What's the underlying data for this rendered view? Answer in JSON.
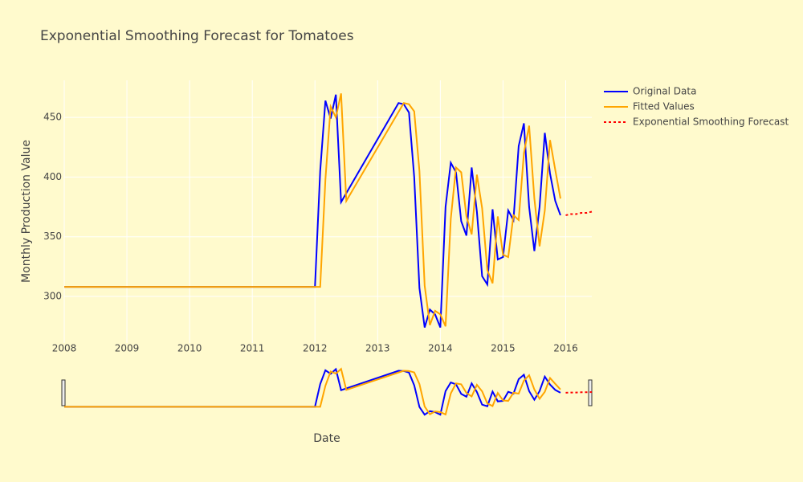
{
  "chart_data": {
    "type": "line",
    "title": "Exponential Smoothing Forecast for Tomatoes",
    "x_label": "Date",
    "y_label": "Monthly Production Value",
    "xlim": [
      "2008-01",
      "2016-06"
    ],
    "xticks": [
      2008,
      2009,
      2010,
      2011,
      2012,
      2013,
      2014,
      2015,
      2016
    ],
    "ylim": [
      261,
      481
    ],
    "yticks": [
      300,
      350,
      400,
      450
    ],
    "grid": true,
    "range_slider": true,
    "legend": "right",
    "series": [
      {
        "name": "Original Data",
        "color": "#0000ff",
        "dash": "solid",
        "x": [
          "2008-01",
          "2012-01",
          "2012-02",
          "2012-03",
          "2012-04",
          "2012-05",
          "2012-06",
          "2013-05",
          "2013-06",
          "2013-07",
          "2013-08",
          "2013-09",
          "2013-10",
          "2013-11",
          "2013-12",
          "2014-01",
          "2014-02",
          "2014-03",
          "2014-04",
          "2014-05",
          "2014-06",
          "2014-07",
          "2014-08",
          "2014-09",
          "2014-10",
          "2014-11",
          "2014-12",
          "2015-01",
          "2015-02",
          "2015-03",
          "2015-04",
          "2015-05",
          "2015-06",
          "2015-07",
          "2015-08",
          "2015-09",
          "2015-10",
          "2015-11",
          "2015-12"
        ],
        "values": [
          308,
          308,
          405,
          464,
          449,
          469,
          379,
          462,
          461,
          454,
          400,
          307,
          274,
          289,
          285,
          274,
          375,
          412,
          404,
          363,
          351,
          408,
          371,
          317,
          310,
          373,
          331,
          333,
          372,
          364,
          426,
          445,
          375,
          338,
          375,
          437,
          403,
          380,
          368
        ]
      },
      {
        "name": "Fitted Values",
        "color": "#ffa500",
        "dash": "solid",
        "x": [
          "2008-01",
          "2012-01",
          "2012-02",
          "2012-03",
          "2012-04",
          "2012-05",
          "2012-06",
          "2012-07",
          "2013-06",
          "2013-07",
          "2013-08",
          "2013-09",
          "2013-10",
          "2013-11",
          "2013-12",
          "2014-01",
          "2014-02",
          "2014-03",
          "2014-04",
          "2014-05",
          "2014-06",
          "2014-07",
          "2014-08",
          "2014-09",
          "2014-10",
          "2014-11",
          "2014-12",
          "2015-01",
          "2015-02",
          "2015-03",
          "2015-04",
          "2015-05",
          "2015-06",
          "2015-07",
          "2015-08",
          "2015-09",
          "2015-10",
          "2015-11",
          "2015-12"
        ],
        "values": [
          308,
          308,
          308,
          398,
          459,
          450,
          470,
          380,
          462,
          461,
          455,
          405,
          309,
          276,
          288,
          285,
          275,
          365,
          408,
          404,
          367,
          352,
          402,
          374,
          322,
          311,
          367,
          335,
          333,
          368,
          364,
          420,
          443,
          382,
          342,
          372,
          431,
          406,
          382
        ]
      },
      {
        "name": "Exponential Smoothing Forecast",
        "color": "#ff0000",
        "dash": "dot",
        "x": [
          "2016-01",
          "2016-02",
          "2016-03",
          "2016-04",
          "2016-05",
          "2016-06"
        ],
        "values": [
          368,
          369,
          369,
          370,
          370,
          371
        ]
      }
    ]
  }
}
